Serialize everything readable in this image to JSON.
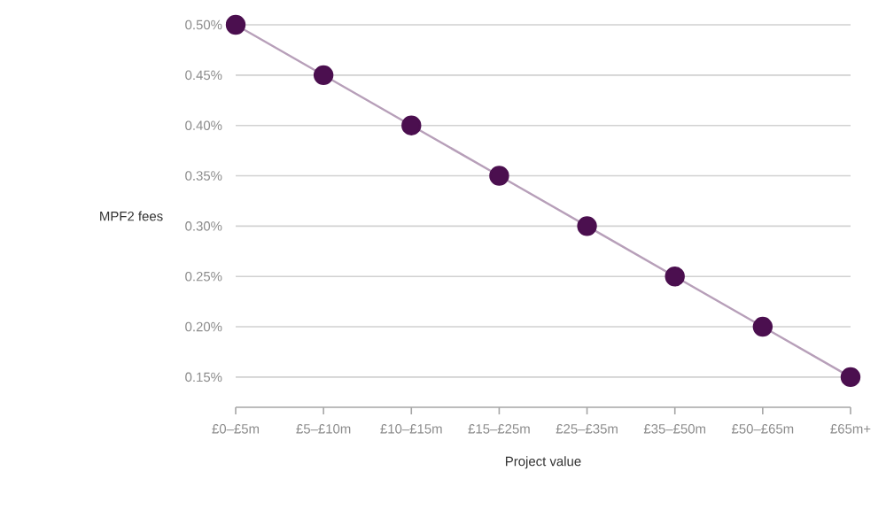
{
  "chart_data": {
    "type": "line",
    "xlabel": "Project value",
    "ylabel": "MPF2 fees",
    "categories": [
      "£0–£5m",
      "£5–£10m",
      "£10–£15m",
      "£15–£25m",
      "£25–£35m",
      "£35–£50m",
      "£50–£65m",
      "£65m+"
    ],
    "series": [
      {
        "color": "#4b0f4f",
        "values": [
          0.5,
          0.45,
          0.4,
          0.35,
          0.3,
          0.25,
          0.2,
          0.15
        ]
      }
    ],
    "ylim": [
      0.12,
      0.5
    ],
    "yticks": [
      {
        "value": 0.15,
        "label": "0.15%"
      },
      {
        "value": 0.2,
        "label": "0.20%"
      },
      {
        "value": 0.25,
        "label": "0.25%"
      },
      {
        "value": 0.3,
        "label": "0.30%"
      },
      {
        "value": 0.35,
        "label": "0.35%"
      },
      {
        "value": 0.4,
        "label": "0.40%"
      },
      {
        "value": 0.45,
        "label": "0.45%"
      },
      {
        "value": 0.5,
        "label": "0.50%"
      }
    ],
    "grid": "y",
    "marker": "circle"
  }
}
